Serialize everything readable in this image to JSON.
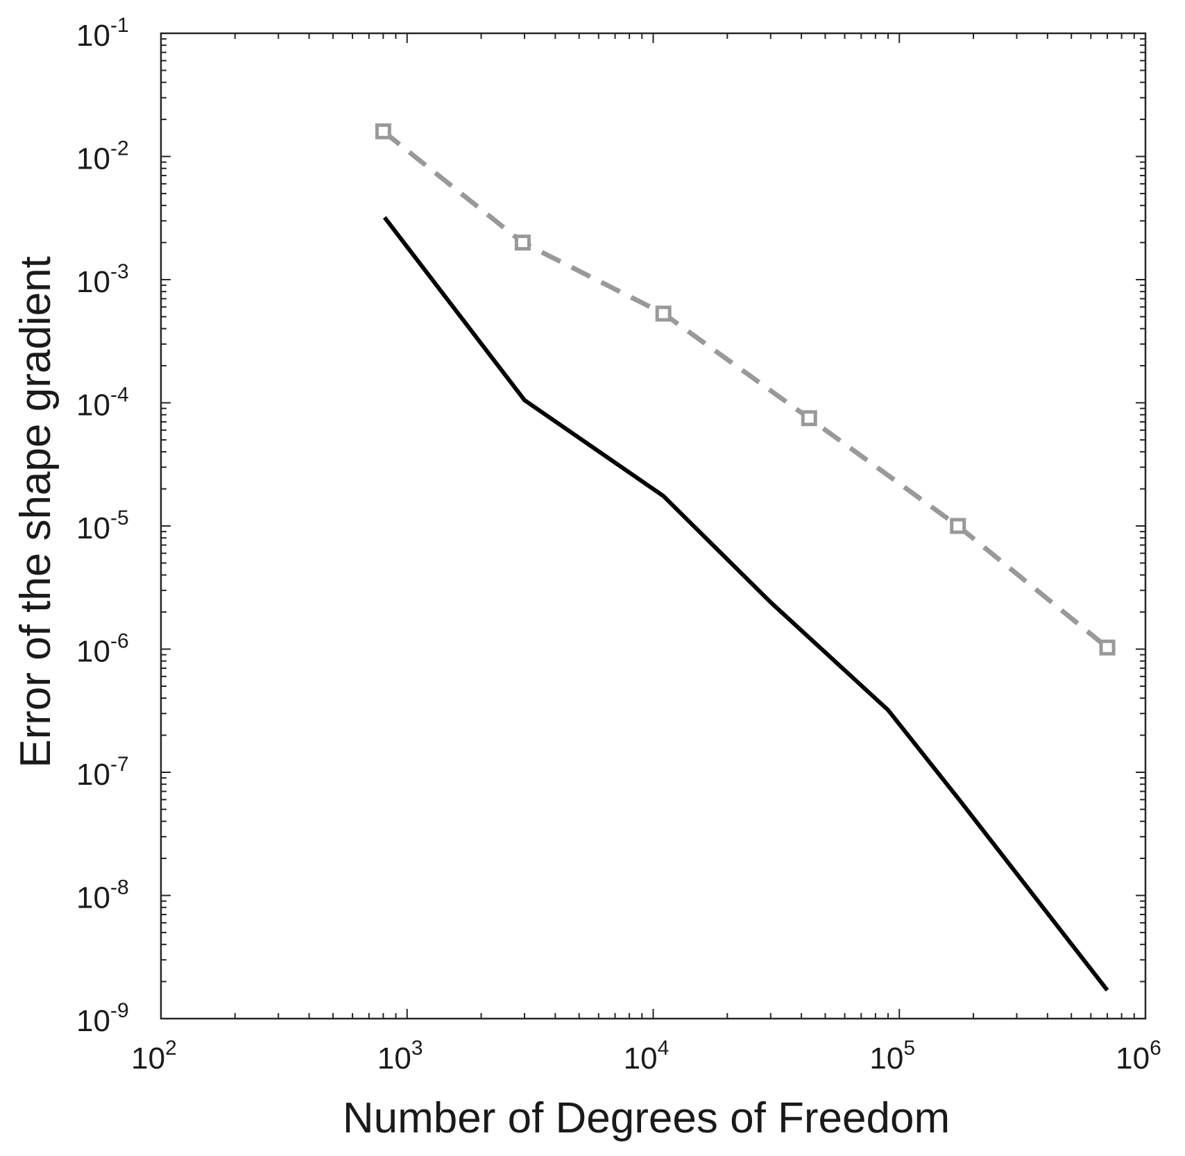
{
  "chart_data": {
    "type": "line",
    "title": "",
    "xlabel": "Number of Degrees of Freedom",
    "ylabel": "Error of the shape gradient",
    "xscale": "log",
    "yscale": "log",
    "xlim": [
      100,
      1000000
    ],
    "ylim": [
      1e-09,
      0.1
    ],
    "grid": false,
    "legend": "none",
    "x_ticks": [
      {
        "base": "10",
        "exp": "2"
      },
      {
        "base": "10",
        "exp": "3"
      },
      {
        "base": "10",
        "exp": "4"
      },
      {
        "base": "10",
        "exp": "5"
      },
      {
        "base": "10",
        "exp": "6"
      }
    ],
    "y_ticks": [
      {
        "base": "10",
        "exp": "-1"
      },
      {
        "base": "10",
        "exp": "-2"
      },
      {
        "base": "10",
        "exp": "-3"
      },
      {
        "base": "10",
        "exp": "-4"
      },
      {
        "base": "10",
        "exp": "-5"
      },
      {
        "base": "10",
        "exp": "-6"
      },
      {
        "base": "10",
        "exp": "-7"
      },
      {
        "base": "10",
        "exp": "-8"
      },
      {
        "base": "10",
        "exp": "-9"
      }
    ],
    "series": [
      {
        "style": "solid",
        "color": "#000000",
        "marker": "none",
        "x": [
          810,
          3000,
          11000,
          30000,
          90000,
          175000,
          700000
        ],
        "y": [
          0.0032,
          0.000105,
          1.75e-05,
          2.4e-06,
          3.2e-07,
          6e-08,
          1.7e-09
        ]
      },
      {
        "style": "dashed",
        "color": "#999999",
        "marker": "square",
        "x": [
          800,
          2950,
          11000,
          43000,
          173000,
          700000
        ],
        "y": [
          0.016,
          0.002,
          0.00053,
          7.5e-05,
          1e-05,
          1.03e-06
        ]
      }
    ]
  }
}
